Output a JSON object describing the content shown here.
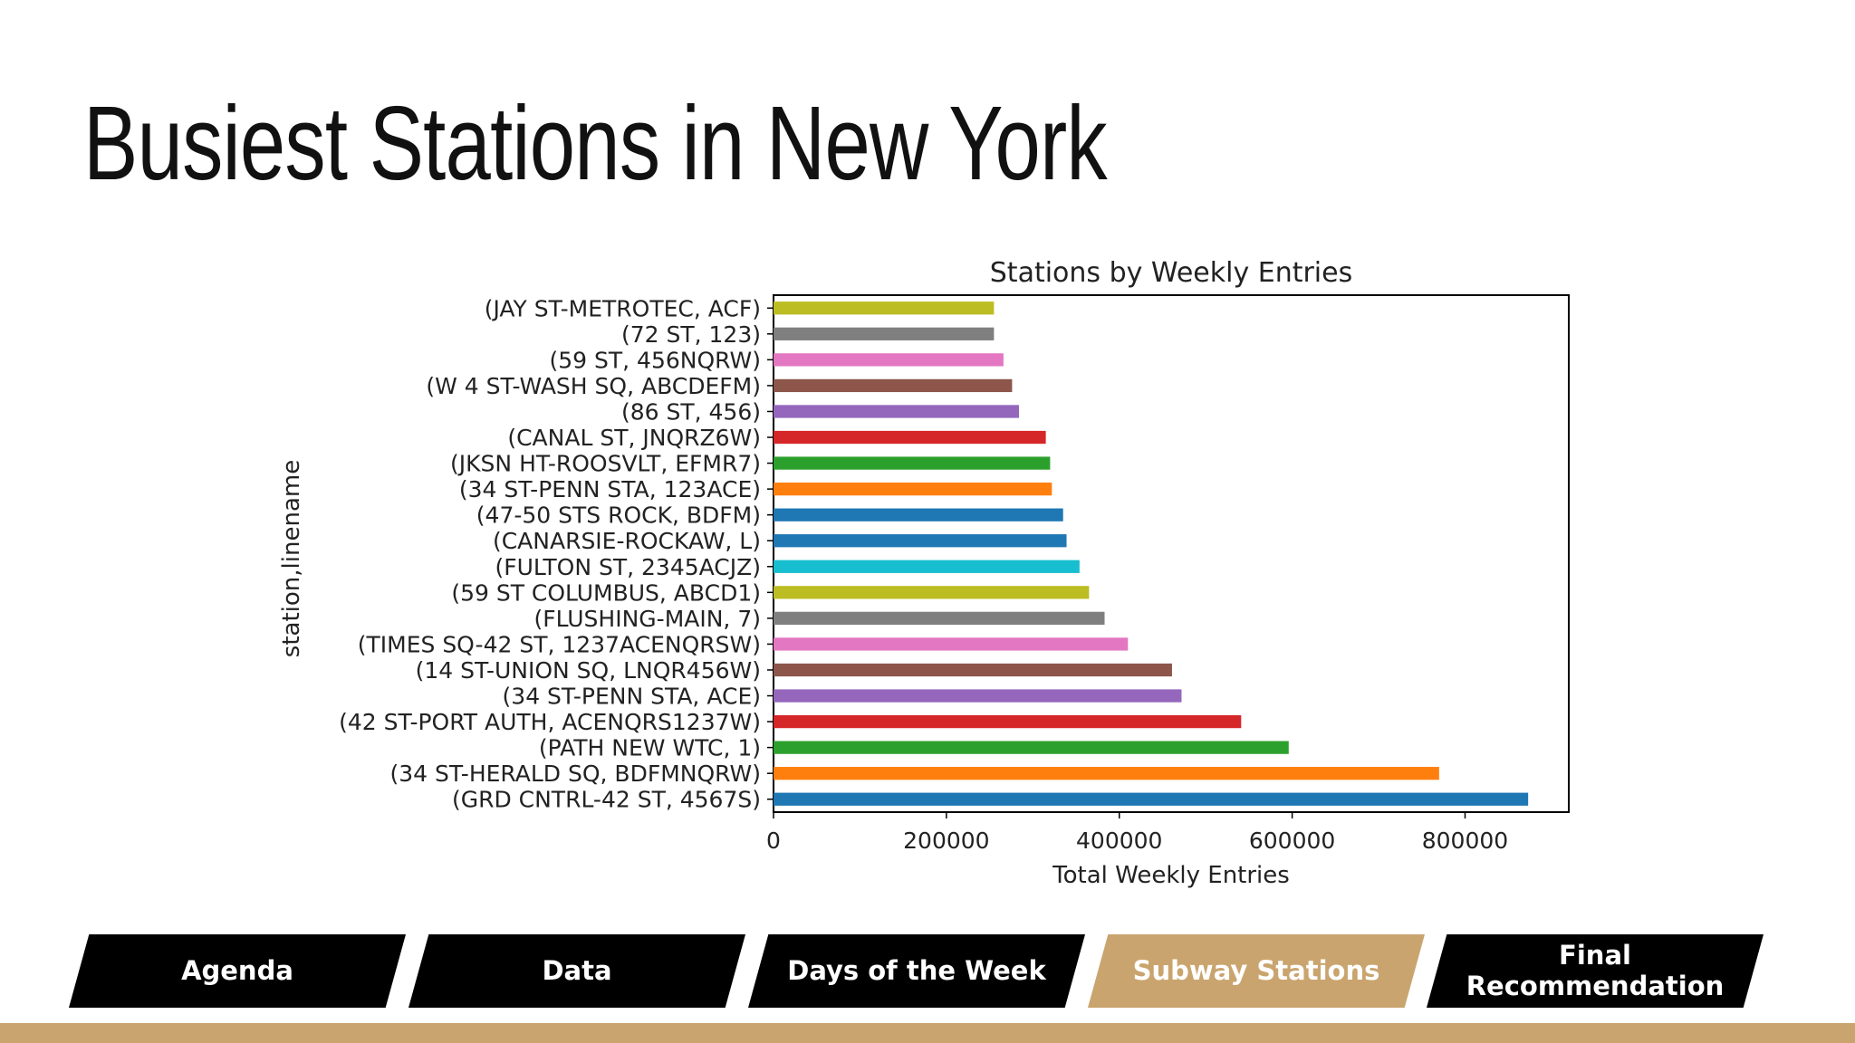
{
  "slide": {
    "title": "Busiest Stations in New York"
  },
  "nav": {
    "tabs": [
      {
        "label": "Agenda",
        "active": false
      },
      {
        "label": "Data",
        "active": false
      },
      {
        "label": "Days of the Week",
        "active": false
      },
      {
        "label": "Subway Stations",
        "active": true
      },
      {
        "label": "Final Recommendation",
        "active": false
      }
    ]
  },
  "colors": {
    "accent": "#caa46e",
    "tab": "#000000"
  },
  "chart_data": {
    "type": "bar",
    "orientation": "horizontal",
    "title": "Stations by Weekly Entries",
    "xlabel": "Total Weekly Entries",
    "ylabel": "station,linename",
    "xlim": [
      0,
      920000
    ],
    "xticks": [
      0,
      200000,
      400000,
      600000,
      800000
    ],
    "grid": false,
    "categories": [
      "(GRD CNTRL-42 ST, 4567S)",
      "(34 ST-HERALD SQ, BDFMNQRW)",
      "(PATH NEW WTC, 1)",
      "(42 ST-PORT AUTH, ACENQRS1237W)",
      "(34 ST-PENN STA, ACE)",
      "(14 ST-UNION SQ, LNQR456W)",
      "(TIMES SQ-42 ST, 1237ACENQRSW)",
      "(FLUSHING-MAIN, 7)",
      "(59 ST COLUMBUS, ABCD1)",
      "(FULTON ST, 2345ACJZ)",
      "(CANARSIE-ROCKAW, L)",
      "(47-50 STS ROCK, BDFM)",
      "(34 ST-PENN STA, 123ACE)",
      "(JKSN HT-ROOSVLT, EFMR7)",
      "(CANAL ST, JNQRZ6W)",
      "(86 ST, 456)",
      "(W 4 ST-WASH SQ, ABCDEFM)",
      "(59 ST, 456NQRW)",
      "(72 ST, 123)",
      "(JAY ST-METROTEC, ACF)"
    ],
    "values": [
      873000,
      770000,
      596000,
      541000,
      472000,
      461000,
      410000,
      383000,
      365000,
      354000,
      339000,
      335000,
      322000,
      320000,
      315000,
      284000,
      276000,
      266000,
      255000,
      255000
    ],
    "bar_colors": [
      "#1f77b4",
      "#ff7f0e",
      "#2ca02c",
      "#d62728",
      "#9467bd",
      "#8c564b",
      "#e377c2",
      "#7f7f7f",
      "#bcbd22",
      "#17becf",
      "#1f77b4",
      "#1f77b4",
      "#ff7f0e",
      "#2ca02c",
      "#d62728",
      "#9467bd",
      "#8c564b",
      "#e377c2",
      "#7f7f7f",
      "#bcbd22"
    ]
  }
}
